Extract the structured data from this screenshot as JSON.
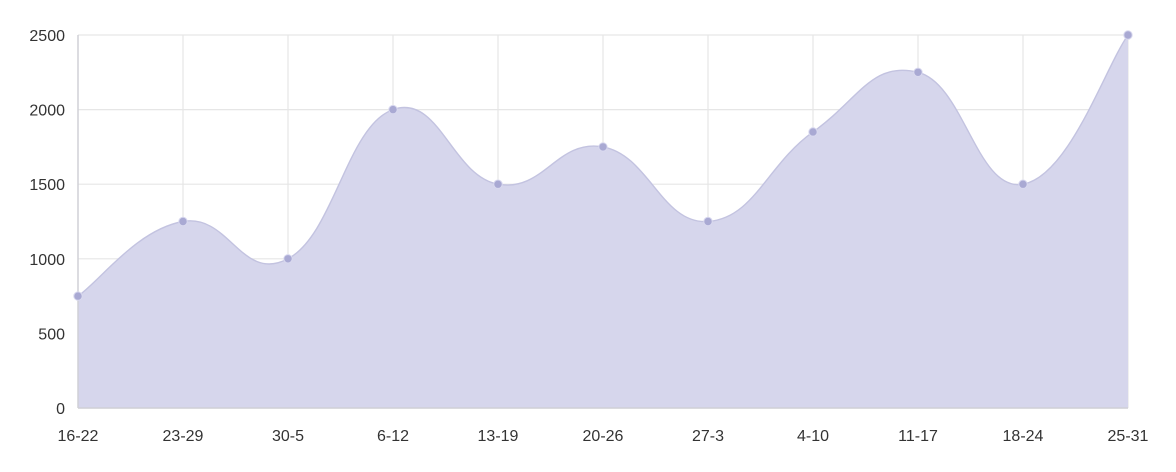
{
  "chart_data": {
    "type": "area",
    "title": "",
    "xlabel": "",
    "ylabel": "",
    "categories": [
      "16-22",
      "23-29",
      "30-5",
      "6-12",
      "13-19",
      "20-26",
      "27-3",
      "4-10",
      "11-17",
      "18-24",
      "25-31"
    ],
    "series": [
      {
        "values": [
          750,
          1250,
          1000,
          2000,
          1500,
          1750,
          1250,
          1850,
          2250,
          1500,
          2500
        ],
        "fill_color": "#d6d6ec",
        "line_color": "#c3c3e0",
        "point_color": "#a9a9d3"
      }
    ],
    "ylim": [
      0,
      2500
    ],
    "yticks": [
      0,
      500,
      1000,
      1500,
      2000,
      2500
    ],
    "grid": true,
    "legend": "none"
  }
}
